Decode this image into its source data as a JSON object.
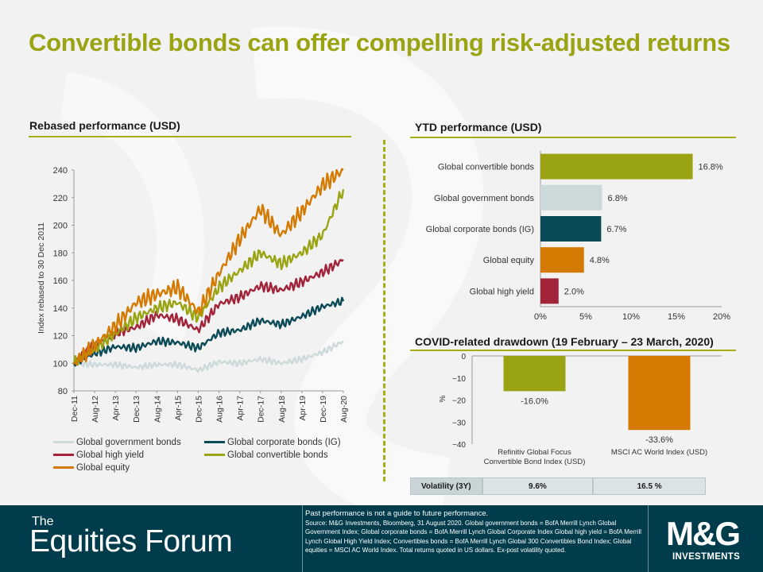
{
  "title": "Convertible bonds can offer compelling risk-adjusted returns",
  "sections": {
    "rebased": "Rebased performance (USD)",
    "ytd": "YTD performance (USD)",
    "drawdown": "COVID-related drawdown (19 February – 23 March, 2020)"
  },
  "colors": {
    "accent": "#9aa413",
    "gov": "#cdd9db",
    "corp": "#0b4a57",
    "hy": "#a2243a",
    "conv": "#9aa413",
    "eq": "#d47a00",
    "footer": "#003c4b"
  },
  "chart_data": [
    {
      "type": "line",
      "title": "Rebased performance (USD)",
      "ylabel": "Index rebased to 30 Dec 2011",
      "ylim": [
        80,
        240
      ],
      "yticks": [
        "80",
        "100",
        "120",
        "140",
        "160",
        "180",
        "200",
        "220",
        "240"
      ],
      "x_ticks": [
        "Dec-11",
        "Aug-12",
        "Apr-13",
        "Dec-13",
        "Aug-14",
        "Apr-15",
        "Dec-15",
        "Aug-16",
        "Apr-17",
        "Dec-17",
        "Aug-18",
        "Apr-19",
        "Dec-19",
        "Aug-20"
      ],
      "series": [
        {
          "name": "Global government bonds",
          "key": "gov",
          "values": [
            100,
            99,
            99,
            97,
            99,
            99,
            95,
            101,
            100,
            103,
            100,
            103,
            108,
            116
          ]
        },
        {
          "name": "Global corporate bonds (IG)",
          "key": "corp",
          "values": [
            100,
            107,
            112,
            111,
            116,
            115,
            111,
            122,
            124,
            131,
            128,
            134,
            141,
            145
          ]
        },
        {
          "name": "Global high yield",
          "key": "hy",
          "values": [
            100,
            113,
            122,
            126,
            135,
            132,
            124,
            143,
            148,
            156,
            153,
            159,
            166,
            175
          ]
        },
        {
          "name": "Global convertible bonds",
          "key": "conv",
          "values": [
            100,
            111,
            121,
            133,
            140,
            144,
            133,
            155,
            167,
            180,
            172,
            180,
            193,
            226
          ]
        },
        {
          "name": "Global equity",
          "key": "eq",
          "values": [
            100,
            113,
            127,
            144,
            150,
            155,
            137,
            165,
            190,
            212,
            193,
            210,
            229,
            240
          ]
        }
      ],
      "legend": [
        {
          "name": "Global government bonds",
          "key": "gov"
        },
        {
          "name": "Global corporate bonds (IG)",
          "key": "corp"
        },
        {
          "name": "Global high yield",
          "key": "hy"
        },
        {
          "name": "Global convertible bonds",
          "key": "conv"
        },
        {
          "name": "Global equity",
          "key": "eq"
        }
      ]
    },
    {
      "type": "bar",
      "orientation": "horizontal",
      "title": "YTD performance (USD)",
      "categories": [
        "Global convertible bonds",
        "Global government bonds",
        "Global corporate bonds (IG)",
        "Global equity",
        "Global high yield"
      ],
      "values": [
        16.8,
        6.8,
        6.7,
        4.8,
        2.0
      ],
      "labels": [
        "16.8%",
        "6.8%",
        "6.7%",
        "4.8%",
        "2.0%"
      ],
      "colors": [
        "#9aa413",
        "#cdd9db",
        "#0b4a57",
        "#d47a00",
        "#a2243a"
      ],
      "xlim": [
        0,
        20
      ],
      "xticks": [
        "0%",
        "5%",
        "10%",
        "15%",
        "20%"
      ]
    },
    {
      "type": "bar",
      "title": "COVID-related drawdown (19 February – 23 March, 2020)",
      "ylabel": "%",
      "ylim": [
        -40,
        0
      ],
      "yticks": [
        "0",
        "−10",
        "−20",
        "−30",
        "−40"
      ],
      "categories": [
        [
          "Refinitiv Global Focus",
          "Convertible Bond Index (USD)"
        ],
        [
          "MSCI AC World Index (USD)"
        ]
      ],
      "values": [
        -16.0,
        -33.6
      ],
      "labels": [
        "-16.0%",
        "-33.6%"
      ],
      "colors": [
        "#9aa413",
        "#d47a00"
      ]
    }
  ],
  "volatility": {
    "label": "Volatility (3Y)",
    "a": "9.6%",
    "b": "16.5 %"
  },
  "footer": {
    "brand_the": "The",
    "brand_name": "Equities Forum",
    "disclaimer": "Past performance is not a guide to future performance.",
    "source": "Source: M&G Investments, Bloomberg, 31 August 2020. Global government bonds = BofA Merrill Lynch Global Government Index; Global corporate bonds = BofA Merrill Lynch Global Corporate Index Global high yield = BofA Merrill Lynch Global High Yield Index; Convertibles bonds = BofA Merrill Lynch Global 300 Convertibles Bond Index; Global equities = MSCI AC World Index. Total returns quoted in US dollars. Ex-post volatility quoted.",
    "logo": "M&G",
    "logo_sub": "INVESTMENTS"
  }
}
